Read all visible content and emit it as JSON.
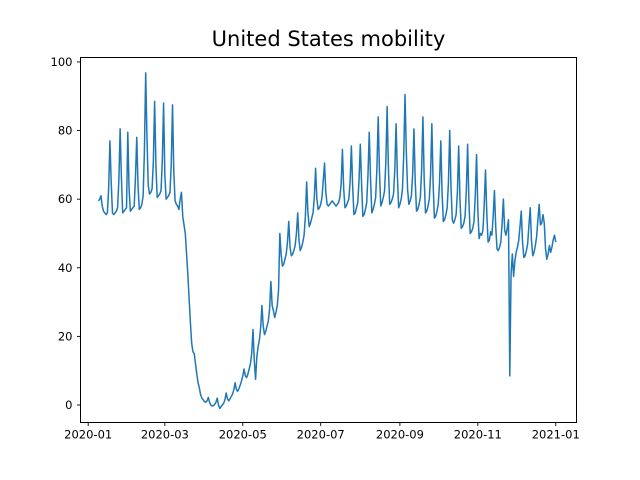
{
  "chart_data": {
    "type": "line",
    "title": "United States mobility",
    "xlabel": "",
    "ylabel": "",
    "grid": false,
    "legend_position": "none",
    "background_color": "#ffffff",
    "line_color": "#1f77b4",
    "axis_color": "#000000",
    "y_ticks": [
      0,
      20,
      40,
      60,
      80,
      100
    ],
    "ylim": [
      -5.1,
      101.3
    ],
    "x_tick_labels": [
      "2020-01",
      "2020-03",
      "2020-05",
      "2020-07",
      "2020-09",
      "2020-11",
      "2021-01"
    ],
    "series": [
      {
        "name": "United States mobility",
        "frequency": "daily",
        "start_date": "2020-01-09",
        "end_date": "2021-01-01",
        "values": [
          59.5,
          60,
          61,
          58,
          56.5,
          56,
          55.5,
          56,
          63,
          77,
          65,
          56,
          55.5,
          56,
          56.5,
          57.5,
          65.5,
          80.5,
          66,
          56,
          56.5,
          57,
          57.5,
          79.5,
          63,
          56.5,
          57,
          57.5,
          58,
          66.5,
          78,
          64,
          57,
          57.5,
          58.5,
          61,
          74,
          96.8,
          78,
          64,
          61.5,
          62,
          63,
          71,
          88.5,
          70,
          60.5,
          61,
          61.5,
          62.5,
          71,
          88,
          67,
          60,
          60.5,
          61,
          62,
          70,
          87.5,
          68,
          59.5,
          58.5,
          58,
          57,
          60,
          62,
          55,
          52.5,
          50,
          44,
          38,
          31,
          24,
          18,
          15.5,
          15,
          12,
          9,
          6.5,
          5,
          3,
          2,
          1.5,
          1,
          0.8,
          1.2,
          2.2,
          0.8,
          0,
          -0.3,
          -0.2,
          0.2,
          0.8,
          2,
          0,
          -1,
          -0.5,
          0,
          0.5,
          1.5,
          3.5,
          1.8,
          1.2,
          1.8,
          2.5,
          3.2,
          4.5,
          6.5,
          4.5,
          4,
          4.8,
          5.8,
          7,
          8.5,
          10.5,
          8.5,
          8,
          9,
          10.5,
          12,
          15,
          22,
          13,
          7.5,
          14,
          17,
          19,
          22.5,
          29,
          23,
          20.5,
          21.5,
          23,
          24.5,
          28,
          36,
          29,
          27.5,
          25.5,
          27,
          29,
          33.5,
          50,
          44,
          40.5,
          41,
          42.5,
          44,
          47.5,
          53.5,
          46,
          43.5,
          44,
          45,
          46.5,
          50,
          56,
          48,
          45,
          46,
          47.5,
          49.5,
          55,
          65,
          56,
          52,
          53,
          54.5,
          56,
          60.5,
          69,
          60,
          57,
          57.5,
          58.5,
          60.5,
          65.5,
          70.5,
          62,
          58.5,
          58,
          58.5,
          59,
          59.5,
          59,
          58.5,
          58,
          58.5,
          59,
          60.5,
          64.5,
          74.5,
          63,
          57.5,
          58,
          59,
          60,
          65,
          75.5,
          64,
          55.5,
          56,
          57.5,
          59,
          65.5,
          76,
          64.5,
          55,
          55.5,
          57,
          59,
          67,
          79.5,
          66,
          56,
          57,
          58.5,
          60.5,
          69,
          84,
          68,
          58,
          59,
          60.5,
          62.5,
          71,
          87,
          69,
          58.5,
          59,
          60,
          61.5,
          68.5,
          82,
          67,
          57.5,
          58.5,
          60,
          63,
          73,
          90.5,
          74,
          63,
          58.5,
          59.5,
          61,
          67.5,
          80.5,
          65,
          56.5,
          57,
          58.5,
          60.5,
          68.5,
          84,
          66,
          56,
          56.5,
          58,
          60,
          67,
          82,
          64.5,
          54.5,
          55,
          56.5,
          58.5,
          64.5,
          77,
          62,
          53.5,
          54,
          55.5,
          57.5,
          65,
          80,
          63.5,
          54,
          53,
          54,
          55.5,
          62,
          75.5,
          60,
          51.5,
          52,
          53,
          55,
          62.5,
          76,
          59.5,
          50,
          50.5,
          51.5,
          53.5,
          61,
          73,
          57,
          48.5,
          50,
          49.5,
          51,
          58.5,
          68.5,
          56,
          47.5,
          48,
          50.5,
          49.5,
          55,
          62.5,
          52,
          45.5,
          45,
          46,
          47.5,
          53,
          60,
          51,
          49.5,
          51.5,
          54,
          8.5,
          38,
          44,
          37.5,
          42,
          44.5,
          46,
          48,
          52,
          56.5,
          47.5,
          43,
          43.5,
          45,
          47,
          52.5,
          57.5,
          48,
          43.5,
          44.5,
          46.5,
          49,
          54,
          58.5,
          52.5,
          53,
          55.5,
          53,
          45.5,
          42.5,
          44,
          46.5,
          44.5,
          46,
          48.2,
          49.5,
          47.5
        ]
      }
    ]
  }
}
